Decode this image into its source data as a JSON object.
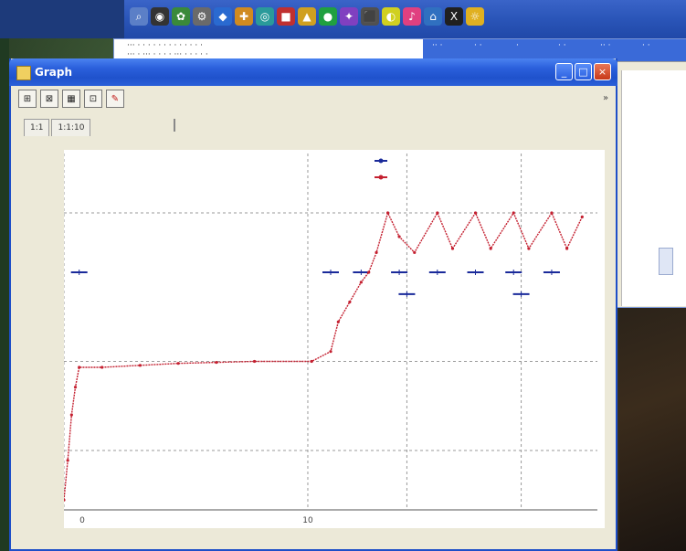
{
  "window": {
    "title": "Graph",
    "buttons": {
      "minimize": "_",
      "maximize": "□",
      "close": "×"
    }
  },
  "toolbar": {
    "tools": [
      {
        "label": "⊞",
        "icon": "zoom-fit-icon"
      },
      {
        "label": "⊠",
        "icon": "zoom-box-icon"
      },
      {
        "label": "▦",
        "icon": "grid-icon"
      },
      {
        "label": "⊡",
        "icon": "export-icon"
      },
      {
        "label": "✎",
        "icon": "pen-icon"
      }
    ],
    "right_marker": "»"
  },
  "tabs": [
    "1:1",
    "1:1:10"
  ],
  "taskbar": {
    "icons": [
      {
        "glyph": "⌕",
        "color": "#5b7fc7"
      },
      {
        "glyph": "◉",
        "color": "#333333"
      },
      {
        "glyph": "✿",
        "color": "#3a8a3a"
      },
      {
        "glyph": "⚙",
        "color": "#6a6a6a"
      },
      {
        "glyph": "◆",
        "color": "#2a6ad0"
      },
      {
        "glyph": "✚",
        "color": "#d08a20"
      },
      {
        "glyph": "◎",
        "color": "#2a9a9a"
      },
      {
        "glyph": "■",
        "color": "#c03030"
      },
      {
        "glyph": "▲",
        "color": "#d0a020"
      },
      {
        "glyph": "●",
        "color": "#20a040"
      },
      {
        "glyph": "✦",
        "color": "#8040c0"
      },
      {
        "glyph": "⬛",
        "color": "#505050"
      },
      {
        "glyph": "◐",
        "color": "#d0d020"
      },
      {
        "glyph": "♪",
        "color": "#e04080"
      },
      {
        "glyph": "⌂",
        "color": "#3070c0"
      },
      {
        "glyph": "X",
        "color": "#202020"
      },
      {
        "glyph": "☼",
        "color": "#e0b020"
      }
    ]
  },
  "background_window": {
    "line1": "··· ·  ·  ·  · · · · ·  ·  · ·   · ·",
    "line2": "··· · ··· · · · · ··· · · ·  ·  ·",
    "blue_cells": [
      "·· ·",
      "· ·",
      "·",
      "· ·",
      "·· ·",
      "· ·"
    ]
  },
  "chart_data": {
    "type": "line",
    "title": "",
    "xlabel": "",
    "ylabel": "",
    "ylim": [
      0,
      1.8
    ],
    "xlim": [
      0,
      14
    ],
    "yticks": [
      "0",
      "0.5",
      "1",
      "1.5"
    ],
    "xticks": [
      "0",
      "10"
    ],
    "grid": true,
    "legend_position": "top-right",
    "series": [
      {
        "name": "",
        "color": "#1a2a9a",
        "marker": "+",
        "points": [
          [
            0.4,
            1.2
          ],
          [
            7.0,
            1.2
          ],
          [
            7.8,
            1.2
          ],
          [
            8.8,
            1.2
          ],
          [
            9.8,
            1.2
          ],
          [
            10.8,
            1.2
          ],
          [
            11.8,
            1.2
          ],
          [
            12.8,
            1.2
          ],
          [
            9.0,
            1.09
          ],
          [
            12.0,
            1.09
          ]
        ]
      },
      {
        "name": "",
        "color": "#c42030",
        "marker": "+",
        "points": [
          [
            0,
            0.05
          ],
          [
            0.1,
            0.25
          ],
          [
            0.2,
            0.48
          ],
          [
            0.3,
            0.62
          ],
          [
            0.4,
            0.72
          ],
          [
            1.0,
            0.72
          ],
          [
            2.0,
            0.73
          ],
          [
            3.0,
            0.74
          ],
          [
            4.0,
            0.745
          ],
          [
            5.0,
            0.75
          ],
          [
            6.5,
            0.75
          ],
          [
            7.0,
            0.8
          ],
          [
            7.2,
            0.95
          ],
          [
            7.5,
            1.05
          ],
          [
            7.8,
            1.15
          ],
          [
            8.0,
            1.2
          ],
          [
            8.2,
            1.3
          ],
          [
            8.5,
            1.5
          ],
          [
            8.8,
            1.38
          ],
          [
            9.2,
            1.3
          ],
          [
            9.8,
            1.5
          ],
          [
            10.2,
            1.32
          ],
          [
            10.8,
            1.5
          ],
          [
            11.2,
            1.32
          ],
          [
            11.8,
            1.5
          ],
          [
            12.2,
            1.32
          ],
          [
            12.8,
            1.5
          ],
          [
            13.2,
            1.32
          ],
          [
            13.6,
            1.48
          ]
        ]
      }
    ]
  }
}
